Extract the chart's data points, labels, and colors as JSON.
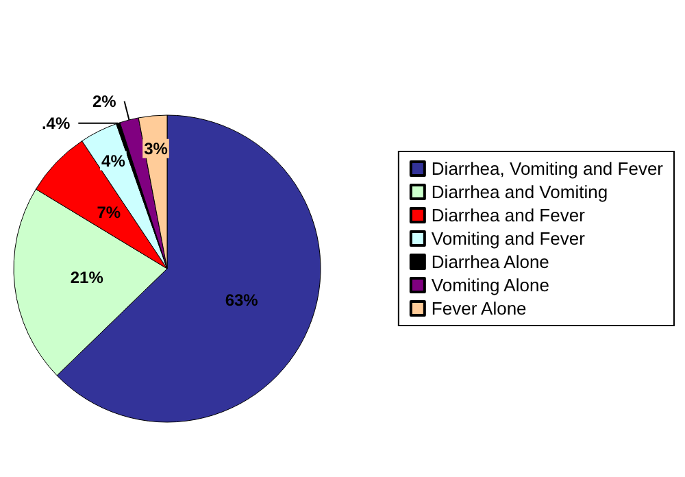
{
  "chart_data": {
    "type": "pie",
    "categories": [
      "Diarrhea, Vomiting and Fever",
      "Diarrhea and Vomiting",
      "Diarrhea and Fever",
      "Vomiting and Fever",
      "Diarrhea Alone",
      "Vomiting Alone",
      "Fever Alone"
    ],
    "values": [
      63,
      21,
      7,
      4,
      0.4,
      2,
      3
    ],
    "value_labels": [
      "63%",
      "21%",
      "7%",
      "4%",
      ".4%",
      "2%",
      "3%"
    ],
    "colors": [
      "#333399",
      "#ccffcc",
      "#ff0000",
      "#ccffff",
      "#000000",
      "#800080",
      "#ffcc99"
    ],
    "legend": "right"
  }
}
